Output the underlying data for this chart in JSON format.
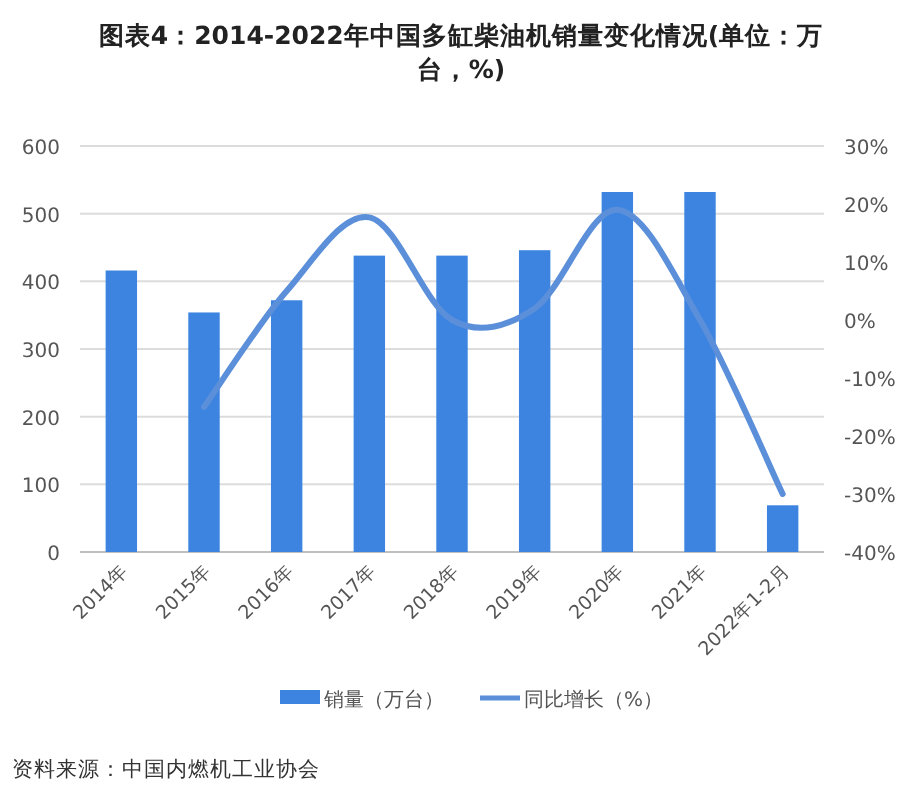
{
  "chart_data": {
    "type": "bar",
    "title": "图表4：2014-2022年中国多缸柴油机销量变化情况(单位：万台，%)",
    "categories": [
      "2014年",
      "2015年",
      "2016年",
      "2017年",
      "2018年",
      "2019年",
      "2020年",
      "2021年",
      "2022年1-2月"
    ],
    "series": [
      {
        "name": "销量（万台）",
        "color": "#3c84e0",
        "values": [
          416,
          354,
          372,
          438,
          438,
          446,
          532,
          532,
          69
        ]
      },
      {
        "name": "同比增长（%）",
        "type": "line",
        "axis": "y2",
        "color": "#5b8fd9",
        "values": [
          null,
          -15,
          5,
          17.7,
          0,
          2,
          19,
          0,
          -30
        ]
      }
    ],
    "ylim": [
      0,
      600
    ],
    "yticks": [
      0,
      100,
      200,
      300,
      400,
      500,
      600
    ],
    "y2lim": [
      -40,
      30
    ],
    "y2ticks": [
      {
        "value": -40,
        "label": "-40%"
      },
      {
        "value": -30,
        "label": "-30%"
      },
      {
        "value": -20,
        "label": "-20%"
      },
      {
        "value": -10,
        "label": "-10%"
      },
      {
        "value": 0,
        "label": "0%"
      },
      {
        "value": 10,
        "label": "10%"
      },
      {
        "value": 20,
        "label": "20%"
      },
      {
        "value": 30,
        "label": "30%"
      }
    ],
    "grid": "y",
    "legend": "bottom",
    "marker": "none",
    "line_style": "solid",
    "annotations": [
      "资料来源：中国内燃机工业协会"
    ]
  }
}
